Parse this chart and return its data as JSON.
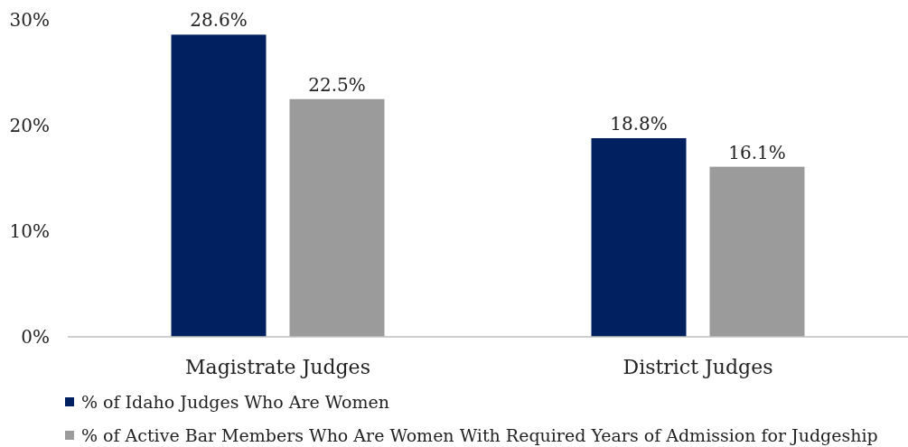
{
  "chart_data": {
    "type": "bar",
    "categories": [
      "Magistrate Judges",
      "District Judges"
    ],
    "series": [
      {
        "name": "% of Idaho Judges Who Are Women",
        "color": "#002060",
        "values": [
          28.6,
          18.8
        ],
        "value_labels": [
          "28.6%",
          "18.8%"
        ]
      },
      {
        "name": "% of Active Bar Members Who Are Women With Required Years of Admission for Judgeship",
        "color": "#9b9b9b",
        "values": [
          22.5,
          16.1
        ],
        "value_labels": [
          "22.5%",
          "16.1%"
        ]
      }
    ],
    "ylim": [
      0,
      30
    ],
    "yticks": [
      {
        "value": 0,
        "label": "0%"
      },
      {
        "value": 10,
        "label": "10%"
      },
      {
        "value": 20,
        "label": "20%"
      },
      {
        "value": 30,
        "label": "30%"
      }
    ],
    "grid": false,
    "legend": "bottom"
  }
}
